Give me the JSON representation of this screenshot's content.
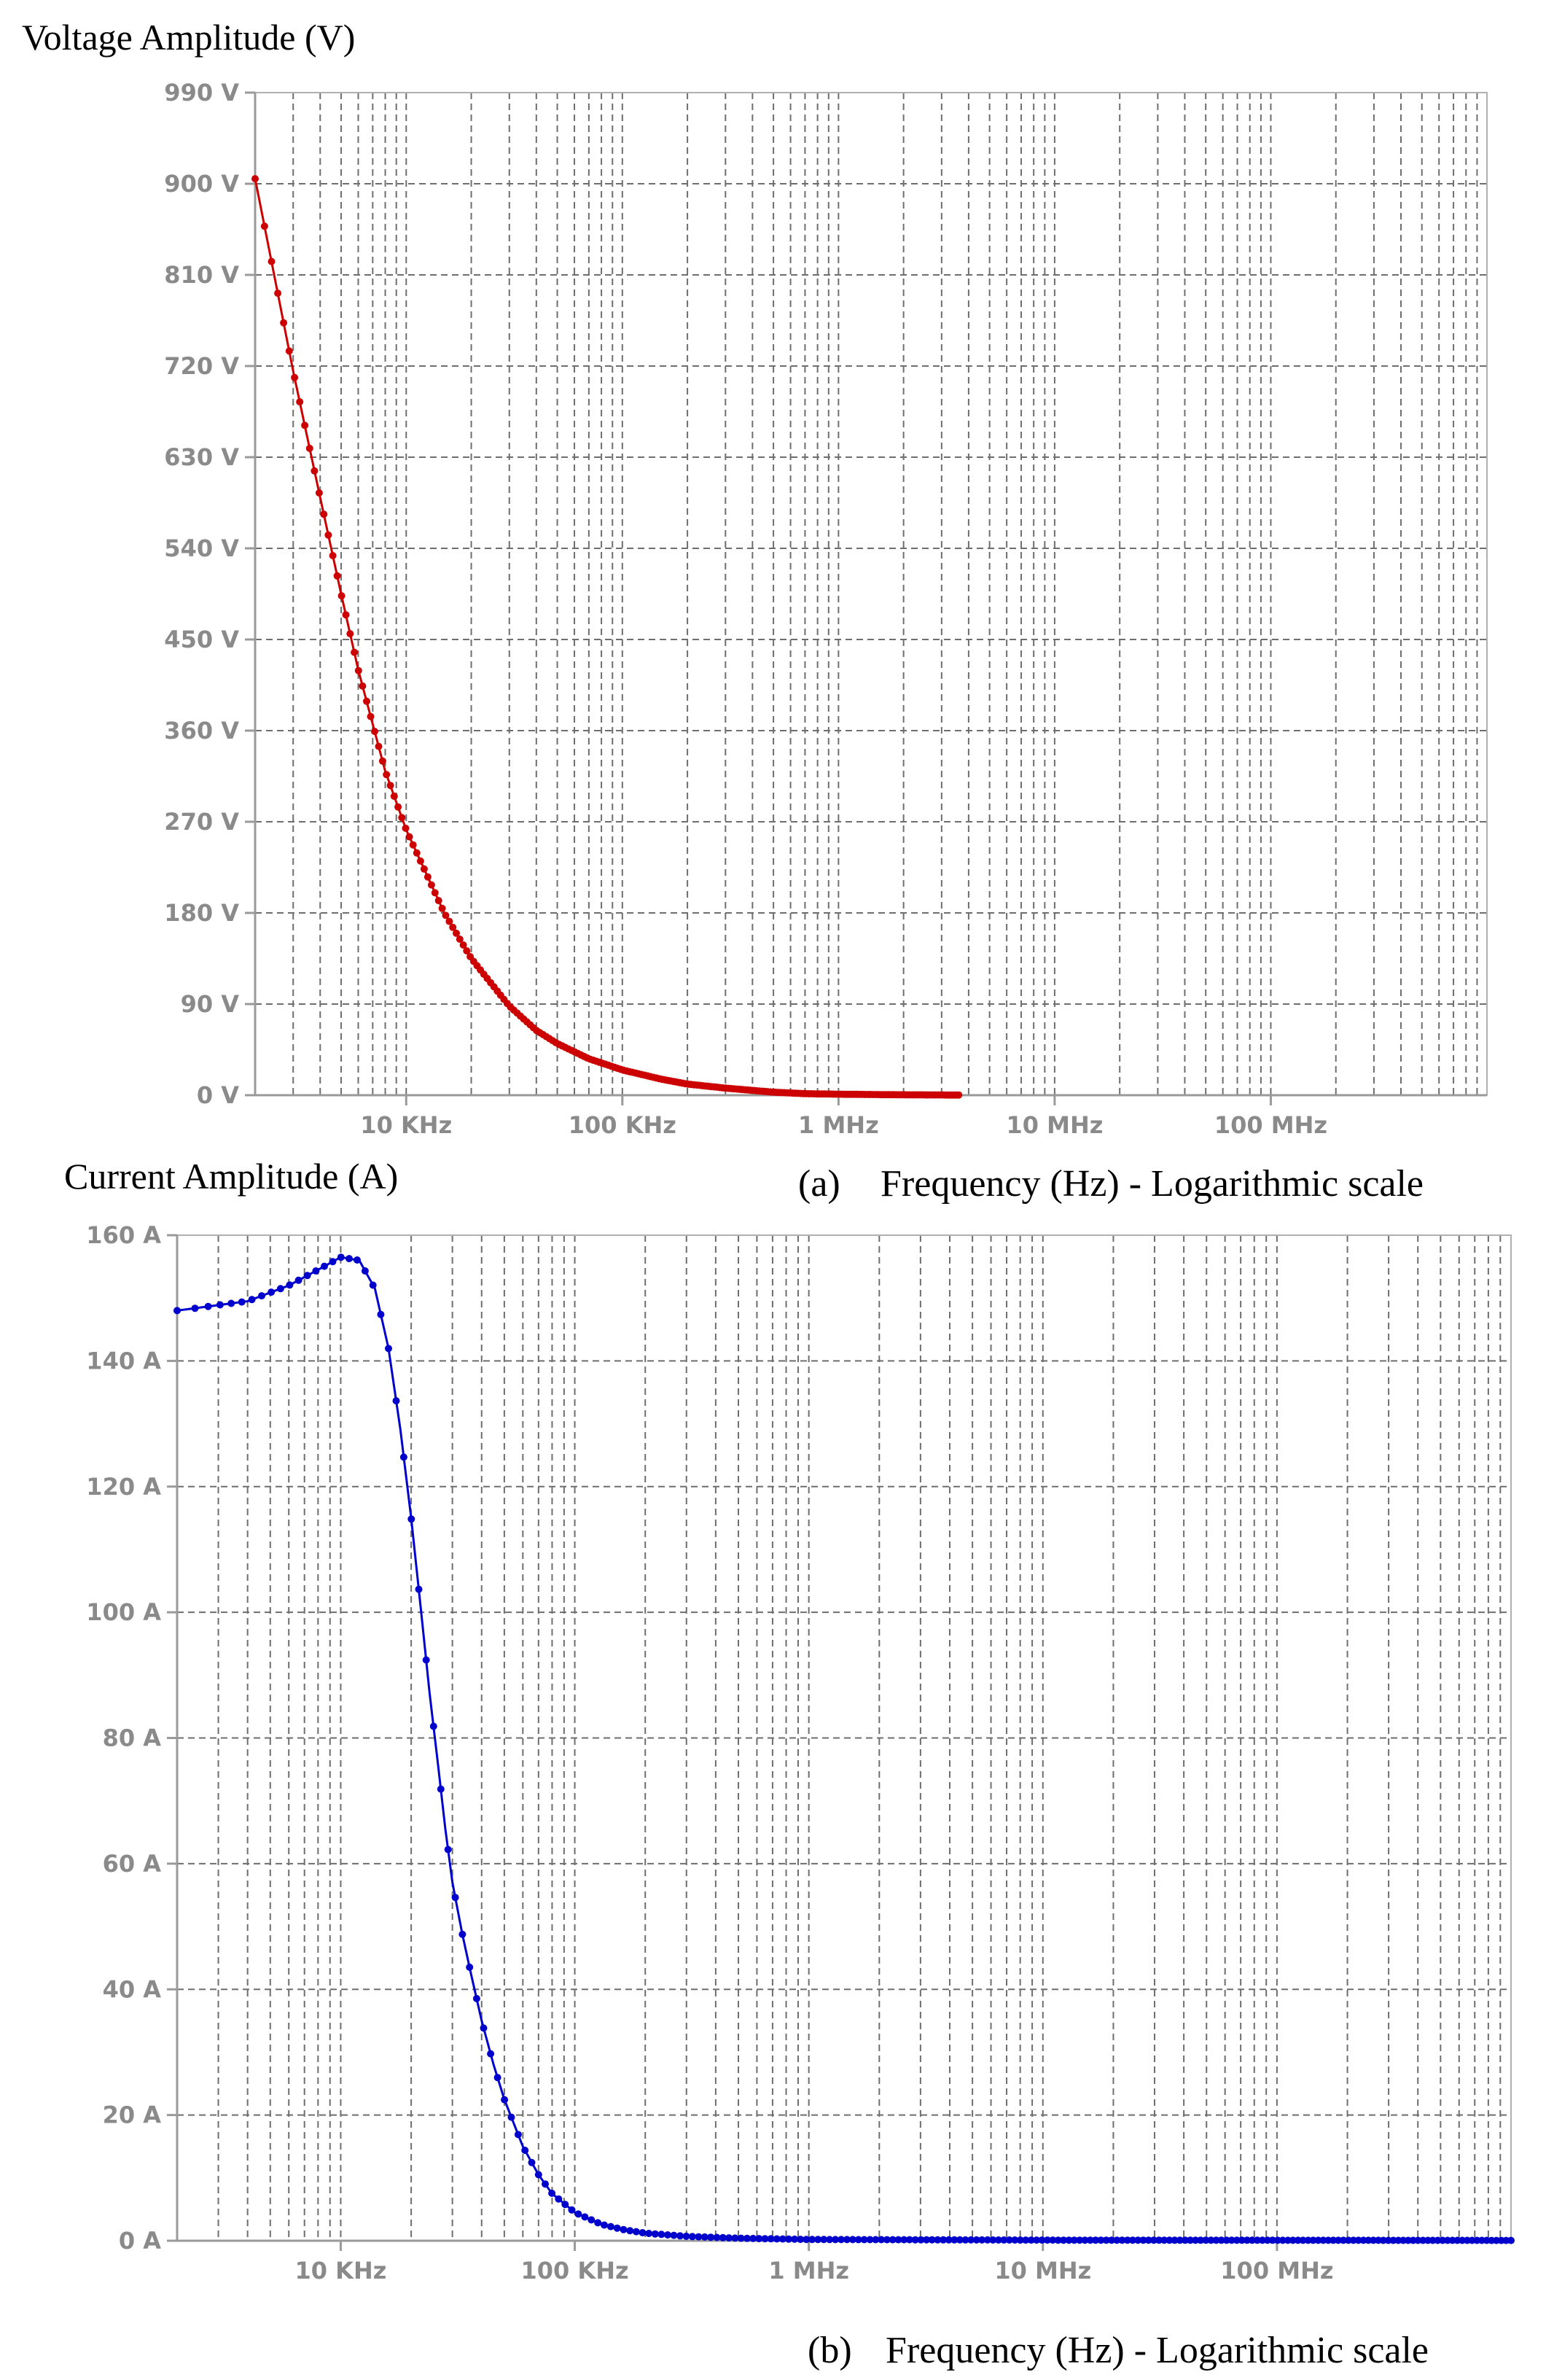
{
  "chart_data": [
    {
      "type": "line",
      "panel_label": "(a)",
      "ylabel": "Voltage Amplitude (V)",
      "xlabel": "Frequency (Hz) - Logarithmic scale",
      "xscale": "log",
      "xlim": [
        2000,
        1000000000
      ],
      "ylim": [
        0,
        990
      ],
      "grid": true,
      "y_ticks": [
        0,
        90,
        180,
        270,
        360,
        450,
        540,
        630,
        720,
        810,
        900,
        990
      ],
      "y_tick_labels": [
        "0 V",
        "90 V",
        "180 V",
        "270 V",
        "360 V",
        "450 V",
        "540 V",
        "630 V",
        "720 V",
        "810 V",
        "900 V",
        "990 V"
      ],
      "x_ticks": [
        10000,
        100000,
        1000000,
        10000000,
        100000000
      ],
      "x_tick_labels": [
        "10 KHz",
        "100 KHz",
        "1 MHz",
        "10 MHz",
        "100 MHz"
      ],
      "color": "#cc0000",
      "series": [
        {
          "x": [
            2000,
            3000,
            4000,
            5000,
            6000,
            8000,
            10000,
            15000,
            20000,
            30000,
            40000,
            50000,
            70000,
            100000,
            150000,
            200000,
            300000,
            500000,
            700000,
            1000000,
            2000000,
            3600000
          ],
          "y": [
            905,
            715,
            590,
            495,
            420,
            320,
            262,
            180,
            135,
            88,
            64,
            51,
            36,
            25,
            16,
            11,
            7,
            3,
            1.5,
            1,
            0.4,
            0.2
          ]
        }
      ]
    },
    {
      "type": "line",
      "panel_label": "(b)",
      "ylabel": "Current Amplitude (A)",
      "xlabel": "Frequency (Hz) - Logarithmic scale",
      "xscale": "log",
      "xlim": [
        2000,
        1000000000
      ],
      "ylim": [
        0,
        160
      ],
      "grid": true,
      "y_ticks": [
        0,
        20,
        40,
        60,
        80,
        100,
        120,
        140,
        160
      ],
      "y_tick_labels": [
        "0 A",
        "20 A",
        "40 A",
        "60 A",
        "80 A",
        "100 A",
        "120 A",
        "140 A",
        "160 A"
      ],
      "x_ticks": [
        10000,
        100000,
        1000000,
        10000000,
        100000000
      ],
      "x_tick_labels": [
        "10 KHz",
        "100 KHz",
        "1 MHz",
        "10 MHz",
        "100 MHz"
      ],
      "color": "#0000cc",
      "series": [
        {
          "x": [
            2000,
            4000,
            6000,
            8000,
            10000,
            12000,
            14000,
            16000,
            18000,
            20000,
            22000,
            24000,
            26000,
            28000,
            30000,
            33000,
            36000,
            40000,
            45000,
            50000,
            60000,
            70000,
            80000,
            100000,
            130000,
            160000,
            200000,
            300000,
            500000,
            1000000,
            10000000,
            1000000000
          ],
          "y": [
            148,
            149.5,
            152,
            154.5,
            156.5,
            156,
            151.5,
            142,
            129,
            115,
            100.5,
            87,
            76,
            65.5,
            57,
            49,
            42.5,
            35,
            28,
            22.5,
            15,
            10.5,
            7.5,
            4.5,
            2.6,
            1.8,
            1.2,
            0.7,
            0.4,
            0.2,
            0.1,
            0.05
          ]
        }
      ]
    }
  ]
}
